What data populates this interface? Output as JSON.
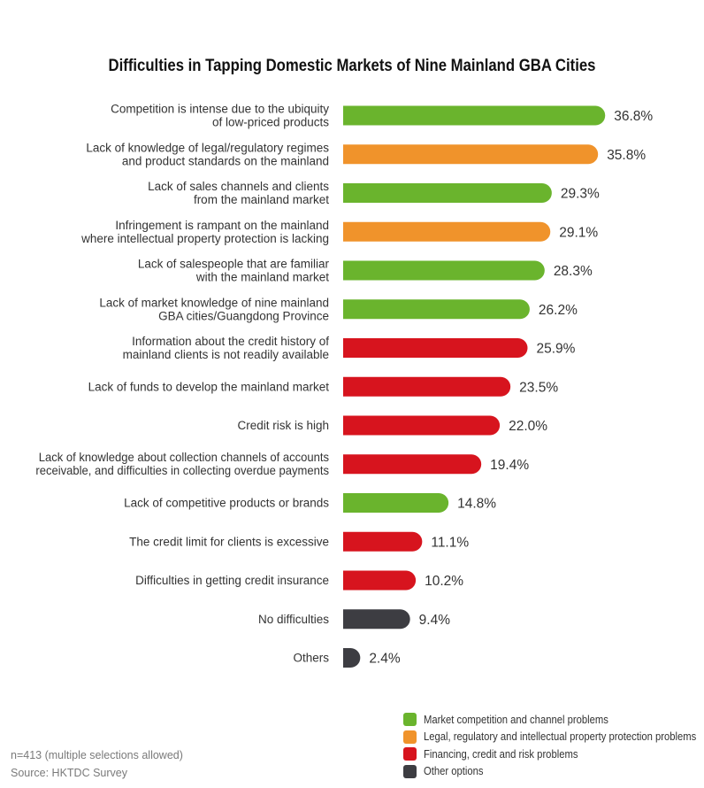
{
  "chart_data": {
    "type": "bar",
    "orientation": "horizontal",
    "title": "Difficulties in Tapping Domestic Markets of Nine Mainland GBA Cities",
    "value_suffix": "%",
    "xlim": [
      0,
      40
    ],
    "grid": false,
    "legend_position": "bottom-right",
    "categories": [
      [
        "Competition is intense due to the ubiquity",
        "of low-priced products"
      ],
      [
        "Lack of knowledge of legal/regulatory regimes",
        "and product standards on the mainland"
      ],
      [
        "Lack of sales channels and clients",
        "from the mainland market"
      ],
      [
        "Infringement is rampant on the mainland",
        "where intellectual property protection is lacking"
      ],
      [
        "Lack of salespeople that are familiar",
        "with the mainland market"
      ],
      [
        "Lack of market knowledge of nine mainland",
        "GBA cities/Guangdong Province"
      ],
      [
        "Information about the credit history of",
        "mainland clients is not readily available"
      ],
      [
        "Lack of funds to develop the mainland market"
      ],
      [
        "Credit risk is high"
      ],
      [
        "Lack of knowledge about collection channels of accounts",
        "receivable, and difficulties in collecting overdue payments"
      ],
      [
        "Lack of competitive products or brands"
      ],
      [
        "The credit limit for clients is excessive"
      ],
      [
        "Difficulties in getting credit insurance"
      ],
      [
        "No difficulties"
      ],
      [
        "Others"
      ]
    ],
    "values": [
      36.8,
      35.8,
      29.3,
      29.1,
      28.3,
      26.2,
      25.9,
      23.5,
      22.0,
      19.4,
      14.8,
      11.1,
      10.2,
      9.4,
      2.4
    ],
    "value_labels": [
      "36.8%",
      "35.8%",
      "29.3%",
      "29.1%",
      "28.3%",
      "26.2%",
      "25.9%",
      "23.5%",
      "22.0%",
      "19.4%",
      "14.8%",
      "11.1%",
      "10.2%",
      "9.4%",
      "2.4%"
    ],
    "groups": [
      0,
      1,
      0,
      1,
      0,
      0,
      2,
      2,
      2,
      2,
      0,
      2,
      2,
      3,
      3
    ],
    "legend": [
      {
        "name": "Market competition and channel problems",
        "color": "#6ab42d"
      },
      {
        "name": "Legal, regulatory and intellectual property protection problems",
        "color": "#f0932b"
      },
      {
        "name": "Financing, credit and risk problems",
        "color": "#d7141e"
      },
      {
        "name": "Other options",
        "color": "#3d3d42"
      }
    ]
  },
  "footnote": {
    "sample": "n=413 (multiple selections allowed)",
    "source": "Source: HKTDC Survey"
  }
}
